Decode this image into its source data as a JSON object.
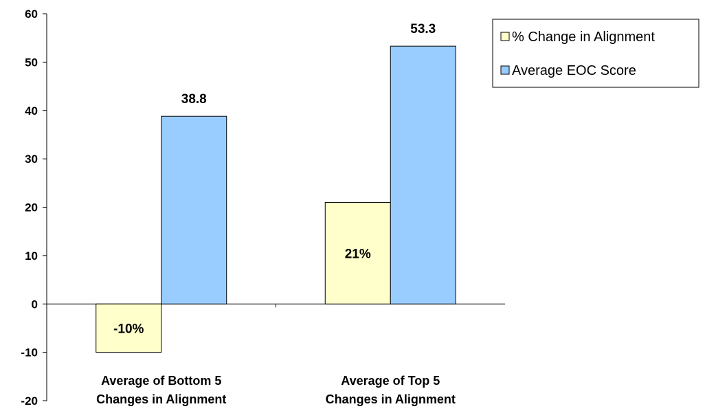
{
  "chart_data": {
    "type": "bar",
    "categories": [
      [
        "Average of Bottom 5",
        "Changes in Alignment"
      ],
      [
        "Average of Top 5",
        "Changes in Alignment"
      ]
    ],
    "series": [
      {
        "name": "% Change in Alignment",
        "values": [
          -10,
          21
        ],
        "data_labels": [
          "-10%",
          "21%"
        ],
        "color": "#ffffcc"
      },
      {
        "name": "Average EOC Score",
        "values": [
          38.8,
          53.3
        ],
        "data_labels": [
          "38.8",
          "53.3"
        ],
        "color": "#99ccff"
      }
    ],
    "title": "",
    "xlabel": "",
    "ylabel": "",
    "ylim": [
      -20,
      60
    ],
    "yticks": [
      -20,
      -10,
      0,
      10,
      20,
      30,
      40,
      50,
      60
    ],
    "grid": false,
    "legend_position": "top-right"
  }
}
